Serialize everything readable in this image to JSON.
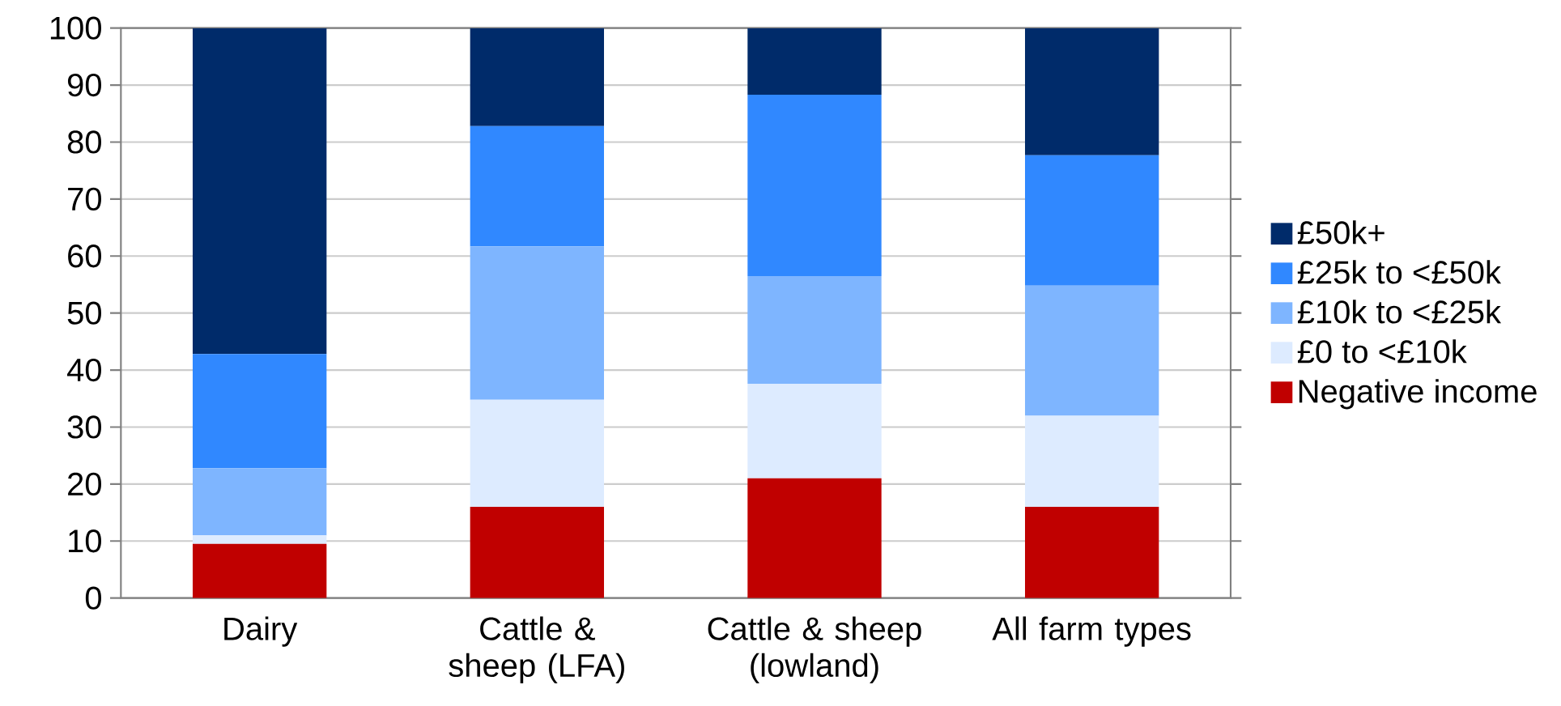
{
  "chart_data": {
    "type": "bar",
    "stacked": true,
    "categories": [
      "Dairy",
      "Cattle & sheep (LFA)",
      "Cattle & sheep (lowland)",
      "All farm types"
    ],
    "series": [
      {
        "name": "Negative income",
        "color": "#c00000",
        "values": [
          9.5,
          16,
          21,
          16
        ]
      },
      {
        "name": "£0 to <£10k",
        "color": "#ddebff",
        "values": [
          1.5,
          18.8,
          16.6,
          16
        ]
      },
      {
        "name": "£10k to <£25k",
        "color": "#7eb5ff",
        "values": [
          11.8,
          26.9,
          18.9,
          22.8
        ]
      },
      {
        "name": "£25k to <£50k",
        "color": "#3088ff",
        "values": [
          20,
          21.1,
          31.8,
          22.9
        ]
      },
      {
        "name": "£50k+",
        "color": "#002b6a",
        "values": [
          57.2,
          17.2,
          11.7,
          22.3
        ]
      }
    ],
    "ylim": [
      0,
      100
    ],
    "yticks": [
      0,
      10,
      20,
      30,
      40,
      50,
      60,
      70,
      80,
      90,
      100
    ],
    "grid": "y",
    "legend": "right"
  }
}
